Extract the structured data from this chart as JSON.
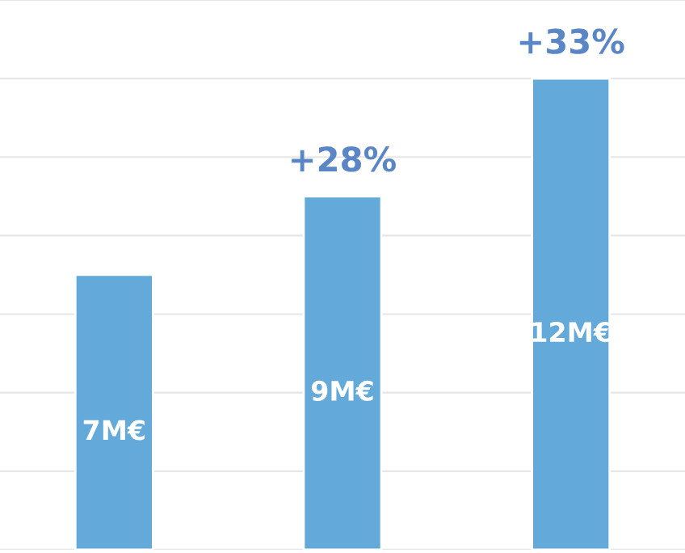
{
  "chart_data": {
    "type": "bar",
    "categories": [
      null,
      null,
      null
    ],
    "values": [
      7,
      9,
      12
    ],
    "value_labels": [
      "7M€",
      "9M€",
      "12M€"
    ],
    "color": "#63a9d9",
    "ylim": [
      0,
      14
    ],
    "yticks": [
      {
        "value": 0,
        "label": null
      },
      {
        "value": 2,
        "label": null
      },
      {
        "value": 4,
        "label": null
      },
      {
        "value": 6,
        "label": null
      },
      {
        "value": 8,
        "label": null
      },
      {
        "value": 10,
        "label": null
      },
      {
        "value": 12,
        "label": null
      },
      {
        "value": 14,
        "label": null
      }
    ],
    "grid": "y",
    "annotations": [
      {
        "text": "+28%",
        "y": 9
      },
      {
        "text": "+33%",
        "y": 12
      }
    ]
  }
}
